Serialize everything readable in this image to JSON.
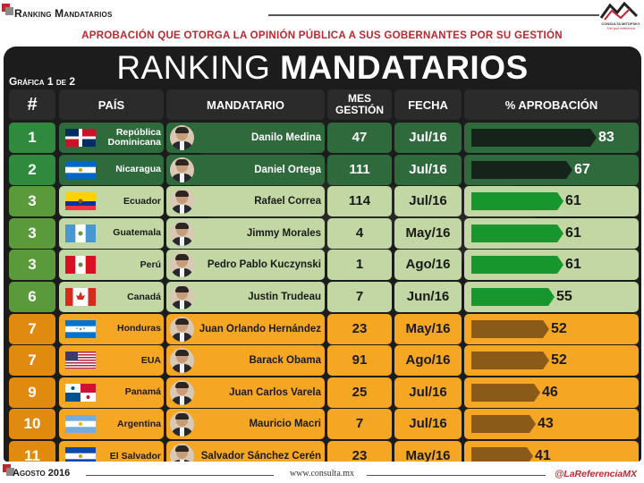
{
  "brand": "Ranking Mandatarios",
  "subtitle": "APROBACIÓN QUE OTORGA LA OPINIÓN PÚBLICA A SUS GOBERNANTES POR SU GESTIÓN",
  "title_light": "RANKING",
  "title_bold": "MANDATARIOS",
  "grafica": "Gráfica 1 de 2",
  "logo": {
    "name": "CONSULTA MITOFSKY",
    "tagline": "The poll reference"
  },
  "headers": {
    "rank": "#",
    "pais": "PAÍS",
    "mandatario": "MANDATARIO",
    "mes_line1": "MES",
    "mes_line2": "GESTIÓN",
    "fecha": "FECHA",
    "aprobacion": "% APROBACIÓN"
  },
  "colors": {
    "dark_green_row": "#2f6a3c",
    "light_green_row": "#c2d7a3",
    "orange_row": "#f5a623",
    "bar_dark": "#16231a",
    "bar_green": "#16962c",
    "bar_brown": "#8a5a18",
    "accent_red": "#c0262d"
  },
  "chart_data": {
    "type": "bar",
    "title": "RANKING MANDATARIOS",
    "subtitle": "APROBACIÓN QUE OTORGA LA OPINIÓN PÚBLICA A SUS GOBERNANTES POR SU GESTIÓN",
    "xlabel": "",
    "ylabel": "% APROBACIÓN",
    "ylim": [
      0,
      100
    ],
    "categories": [
      "Danilo Medina",
      "Daniel Ortega",
      "Rafael Correa",
      "Jimmy Morales",
      "Pedro Pablo Kuczynski",
      "Justin Trudeau",
      "Juan Orlando Hernández",
      "Barack Obama",
      "Juan Carlos Varela",
      "Mauricio Macri",
      "Salvador Sánchez Cerén"
    ],
    "values": [
      83,
      67,
      61,
      61,
      61,
      55,
      52,
      52,
      46,
      43,
      41
    ],
    "rows": [
      {
        "rank": "1",
        "country": "República Dominicana",
        "flag": "dominican-republic",
        "president": "Danilo Medina",
        "months": "47",
        "date": "Jul/16",
        "approval": 83,
        "tier": "dark"
      },
      {
        "rank": "2",
        "country": "Nicaragua",
        "flag": "nicaragua",
        "president": "Daniel Ortega",
        "months": "111",
        "date": "Jul/16",
        "approval": 67,
        "tier": "dark"
      },
      {
        "rank": "3",
        "country": "Ecuador",
        "flag": "ecuador",
        "president": "Rafael Correa",
        "months": "114",
        "date": "Jul/16",
        "approval": 61,
        "tier": "green"
      },
      {
        "rank": "3",
        "country": "Guatemala",
        "flag": "guatemala",
        "president": "Jimmy Morales",
        "months": "4",
        "date": "May/16",
        "approval": 61,
        "tier": "green"
      },
      {
        "rank": "3",
        "country": "Perú",
        "flag": "peru",
        "president": "Pedro Pablo Kuczynski",
        "months": "1",
        "date": "Ago/16",
        "approval": 61,
        "tier": "green"
      },
      {
        "rank": "6",
        "country": "Canadá",
        "flag": "canada",
        "president": "Justin Trudeau",
        "months": "7",
        "date": "Jun/16",
        "approval": 55,
        "tier": "green"
      },
      {
        "rank": "7",
        "country": "Honduras",
        "flag": "honduras",
        "president": "Juan Orlando Hernández",
        "months": "23",
        "date": "May/16",
        "approval": 52,
        "tier": "orange"
      },
      {
        "rank": "7",
        "country": "EUA",
        "flag": "usa",
        "president": "Barack Obama",
        "months": "91",
        "date": "Ago/16",
        "approval": 52,
        "tier": "orange"
      },
      {
        "rank": "9",
        "country": "Panamá",
        "flag": "panama",
        "president": "Juan Carlos Varela",
        "months": "25",
        "date": "Jul/16",
        "approval": 46,
        "tier": "orange"
      },
      {
        "rank": "10",
        "country": "Argentina",
        "flag": "argentina",
        "president": "Mauricio Macri",
        "months": "7",
        "date": "Jul/16",
        "approval": 43,
        "tier": "orange"
      },
      {
        "rank": "11",
        "country": "El Salvador",
        "flag": "el-salvador",
        "president": "Salvador Sánchez Cerén",
        "months": "23",
        "date": "May/16",
        "approval": 41,
        "tier": "orange"
      }
    ]
  },
  "footer": {
    "date": "Agosto 2016",
    "url": "www.consulta.mx",
    "handle": "@LaReferenciaMX"
  }
}
